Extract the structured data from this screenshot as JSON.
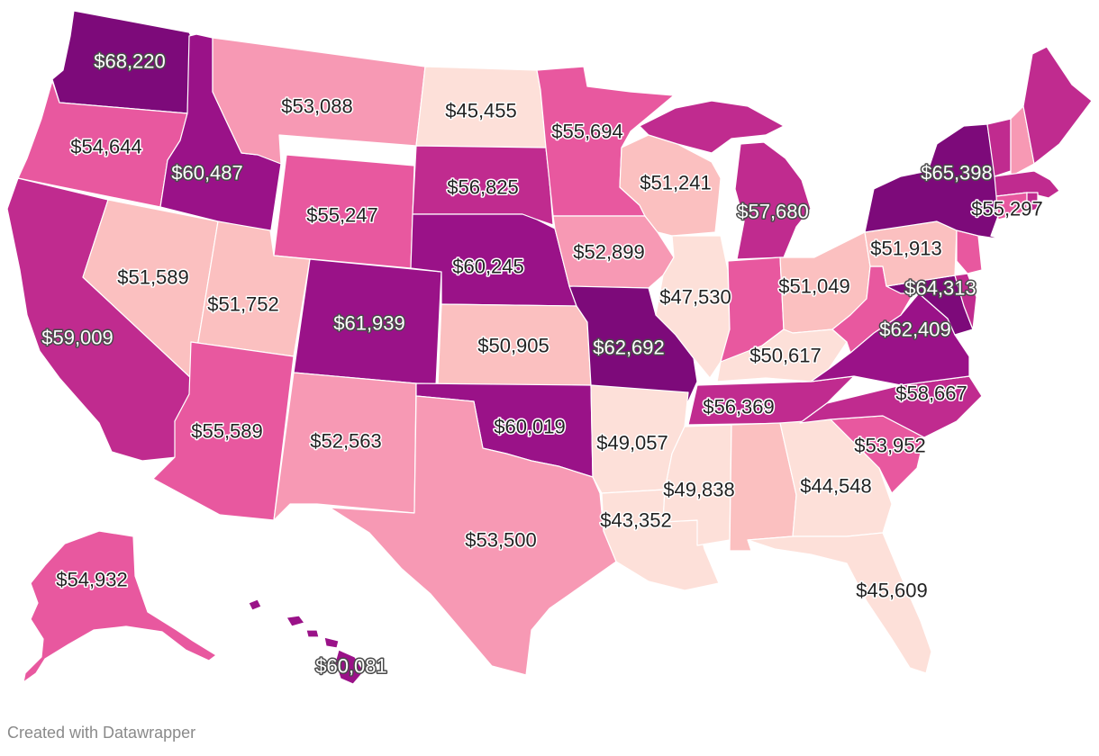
{
  "footer": {
    "credit": "Created with Datawrapper"
  },
  "colors": {
    "lightest": "#fde0d9",
    "light": "#fbc0c0",
    "medium_light": "#f799b4",
    "medium": "#e8589f",
    "medium_dark": "#c02b8f",
    "dark": "#9a1288",
    "darkest": "#7d0a7a",
    "border": "#ffffff",
    "background": "#ffffff"
  },
  "chart_data": {
    "type": "choropleth",
    "region": "United States",
    "labeled_values": [
      {
        "state": "WA",
        "label": "$68,220",
        "value": 68220
      },
      {
        "state": "OR",
        "label": "$54,644",
        "value": 54644
      },
      {
        "state": "CA",
        "label": "$59,009",
        "value": 59009
      },
      {
        "state": "ID",
        "label": "$60,487",
        "value": 60487
      },
      {
        "state": "NV",
        "label": "$51,589",
        "value": 51589
      },
      {
        "state": "MT",
        "label": "$53,088",
        "value": 53088
      },
      {
        "state": "WY",
        "label": "$55,247",
        "value": 55247
      },
      {
        "state": "UT",
        "label": "$51,752",
        "value": 51752
      },
      {
        "state": "AZ",
        "label": "$55,589",
        "value": 55589
      },
      {
        "state": "CO",
        "label": "$61,939",
        "value": 61939
      },
      {
        "state": "NM",
        "label": "$52,563",
        "value": 52563
      },
      {
        "state": "ND",
        "label": "$45,455",
        "value": 45455
      },
      {
        "state": "SD",
        "label": "$56,825",
        "value": 56825
      },
      {
        "state": "NE",
        "label": "$60,245",
        "value": 60245
      },
      {
        "state": "KS",
        "label": "$50,905",
        "value": 50905
      },
      {
        "state": "OK",
        "label": "$60,019",
        "value": 60019
      },
      {
        "state": "TX",
        "label": "$53,500",
        "value": 53500
      },
      {
        "state": "MN",
        "label": "$55,694",
        "value": 55694
      },
      {
        "state": "IA",
        "label": "$52,899",
        "value": 52899
      },
      {
        "state": "MO",
        "label": "$62,692",
        "value": 62692
      },
      {
        "state": "AR",
        "label": "$49,057",
        "value": 49057
      },
      {
        "state": "LA",
        "label": "$43,352",
        "value": 43352
      },
      {
        "state": "WI",
        "label": "$51,241",
        "value": 51241
      },
      {
        "state": "IL",
        "label": "$47,530",
        "value": 47530
      },
      {
        "state": "MI",
        "label": "$57,680",
        "value": 57680
      },
      {
        "state": "IN",
        "label": "",
        "value": null
      },
      {
        "state": "OH",
        "label": "$51,049",
        "value": 51049
      },
      {
        "state": "KY",
        "label": "$50,617",
        "value": 50617
      },
      {
        "state": "TN",
        "label": "$56,369",
        "value": 56369
      },
      {
        "state": "MS",
        "label": "$49,838",
        "value": 49838
      },
      {
        "state": "AL",
        "label": "",
        "value": null
      },
      {
        "state": "GA",
        "label": "$44,548",
        "value": 44548
      },
      {
        "state": "FL",
        "label": "$45,609",
        "value": 45609
      },
      {
        "state": "SC",
        "label": "$53,952",
        "value": 53952
      },
      {
        "state": "NC",
        "label": "$58,667",
        "value": 58667
      },
      {
        "state": "VA",
        "label": "$62,409",
        "value": 62409
      },
      {
        "state": "WV",
        "label": "",
        "value": null
      },
      {
        "state": "MD",
        "label": "$64,313",
        "value": 64313
      },
      {
        "state": "PA",
        "label": "$51,913",
        "value": 51913
      },
      {
        "state": "NY",
        "label": "$65,398",
        "value": 65398
      },
      {
        "state": "MA",
        "label": "$55,297",
        "value": 55297
      },
      {
        "state": "AK",
        "label": "$54,932",
        "value": 54932
      },
      {
        "state": "HI",
        "label": "$60,081",
        "value": 60081
      }
    ]
  }
}
